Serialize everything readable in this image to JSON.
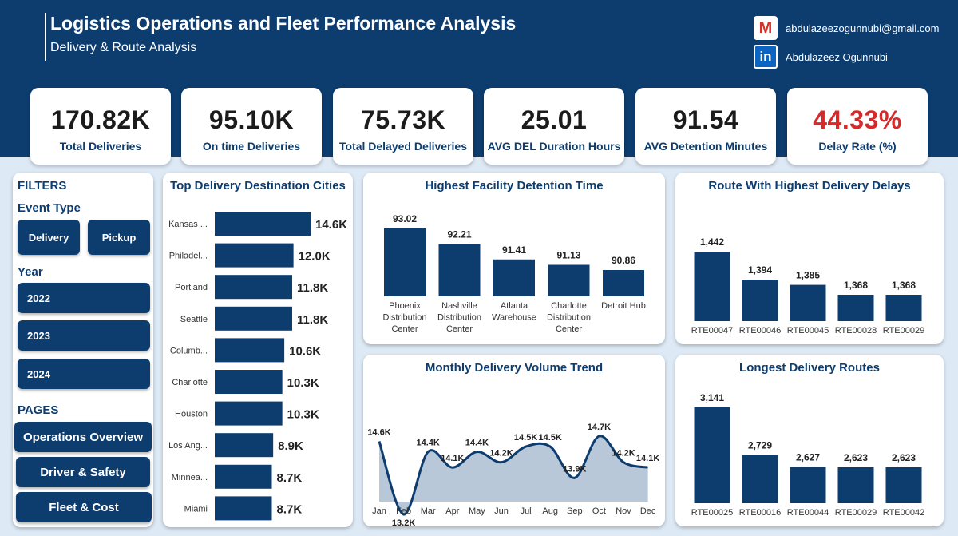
{
  "header": {
    "title": "Logistics Operations and Fleet Performance Analysis",
    "subtitle": "Delivery & Route Analysis",
    "email": "abdulazeezogunnubi@gmail.com",
    "name": "Abdulazeez Ogunnubi",
    "gmail_icon": "M",
    "linkedin_icon": "in"
  },
  "kpis": [
    {
      "value": "170.82K",
      "label": "Total Deliveries",
      "color": "#1b1b1b"
    },
    {
      "value": "95.10K",
      "label": "On time Deliveries",
      "color": "#1b1b1b"
    },
    {
      "value": "75.73K",
      "label": "Total Delayed Deliveries",
      "color": "#1b1b1b"
    },
    {
      "value": "25.01",
      "label": "AVG DEL Duration Hours",
      "color": "#1b1b1b"
    },
    {
      "value": "91.54",
      "label": "AVG Detention Minutes",
      "color": "#1b1b1b"
    },
    {
      "value": "44.33%",
      "label": "Delay Rate (%)",
      "color": "#d62a2a"
    }
  ],
  "filters": {
    "heading": "FILTERS",
    "event_type_label": "Event Type",
    "event_types": [
      "Delivery",
      "Pickup"
    ],
    "year_label": "Year",
    "years": [
      "2022",
      "2023",
      "2024"
    ],
    "pages_label": "PAGES",
    "pages": [
      "Operations Overview",
      "Driver & Safety",
      "Fleet & Cost"
    ]
  },
  "colors": {
    "primary": "#0d3c6e",
    "area_fill": "#b8c8d8",
    "accent_red": "#d62a2a"
  },
  "chart_data": [
    {
      "type": "bar",
      "orientation": "horizontal",
      "title": "Top Delivery Destination Cities",
      "categories": [
        "Kansas ...",
        "Philadel...",
        "Portland",
        "Seattle",
        "Columb...",
        "Charlotte",
        "Houston",
        "Los Ang...",
        "Minnea...",
        "Miami"
      ],
      "values": [
        14.6,
        12.0,
        11.8,
        11.8,
        10.6,
        10.3,
        10.3,
        8.9,
        8.7,
        8.7
      ],
      "labels": [
        "14.6K",
        "12.0K",
        "11.8K",
        "11.8K",
        "10.6K",
        "10.3K",
        "10.3K",
        "8.9K",
        "8.7K",
        "8.7K"
      ]
    },
    {
      "type": "bar",
      "title": "Highest Facility Detention Time",
      "categories": [
        [
          "Phoenix",
          "Distribution",
          "Center"
        ],
        [
          "Nashville",
          "Distribution",
          "Center"
        ],
        [
          "Atlanta",
          "Warehouse"
        ],
        [
          "Charlotte",
          "Distribution",
          "Center"
        ],
        [
          "Detroit Hub"
        ]
      ],
      "values": [
        93.02,
        92.21,
        91.41,
        91.13,
        90.86
      ],
      "labels": [
        "93.02",
        "92.21",
        "91.41",
        "91.13",
        "90.86"
      ]
    },
    {
      "type": "bar",
      "title": "Route With Highest Delivery Delays",
      "categories": [
        "RTE00047",
        "RTE00046",
        "RTE00045",
        "RTE00028",
        "RTE00029"
      ],
      "values": [
        1442,
        1394,
        1385,
        1368,
        1368
      ],
      "labels": [
        "1,442",
        "1,394",
        "1,385",
        "1,368",
        "1,368"
      ]
    },
    {
      "type": "area",
      "title": "Monthly Delivery Volume Trend",
      "categories": [
        "Jan",
        "Feb",
        "Mar",
        "Apr",
        "May",
        "Jun",
        "Jul",
        "Aug",
        "Sep",
        "Oct",
        "Nov",
        "Dec"
      ],
      "values": [
        14.6,
        13.2,
        14.4,
        14.1,
        14.4,
        14.2,
        14.5,
        14.5,
        13.9,
        14.7,
        14.2,
        14.1
      ],
      "labels": [
        "14.6K",
        "13.2K",
        "14.4K",
        "14.1K",
        "14.4K",
        "14.2K",
        "14.5K",
        "14.5K",
        "13.9K",
        "14.7K",
        "14.2K",
        "14.1K"
      ]
    },
    {
      "type": "bar",
      "title": "Longest Delivery Routes",
      "categories": [
        "RTE00025",
        "RTE00016",
        "RTE00044",
        "RTE00029",
        "RTE00042"
      ],
      "values": [
        3141,
        2729,
        2627,
        2623,
        2623
      ],
      "labels": [
        "3,141",
        "2,729",
        "2,627",
        "2,623",
        "2,623"
      ]
    }
  ]
}
